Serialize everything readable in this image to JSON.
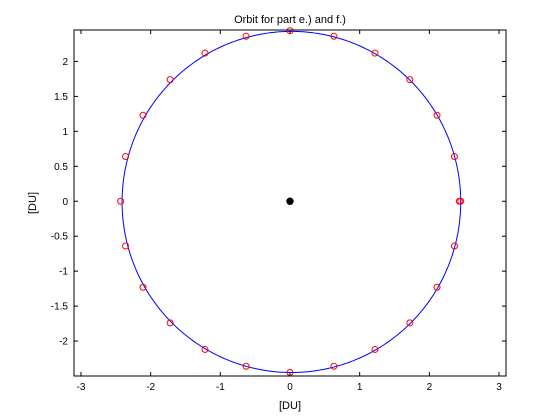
{
  "chart_data": {
    "type": "scatter",
    "title": "Orbit for part e.) and f.)",
    "xlabel": "[DU]",
    "ylabel": "[DU]",
    "xlim": [
      -3.1,
      3.1
    ],
    "ylim": [
      -2.5,
      2.45
    ],
    "x_ticks": [
      -3,
      -2,
      -1,
      0,
      1,
      2,
      3
    ],
    "y_ticks": [
      -2,
      -1.5,
      -1,
      -0.5,
      0,
      0.5,
      1,
      1.5,
      2
    ],
    "grid": false,
    "legend": "none",
    "series": [
      {
        "kind": "line",
        "style": "orbit",
        "center": [
          0.02,
          -0.01
        ],
        "radius_x": 2.43,
        "radius_y": 2.44,
        "color": "#0000ff"
      },
      {
        "kind": "markers",
        "marker": "circle",
        "color": "#ff0000",
        "points": [
          [
            2.45,
            0.0
          ],
          [
            2.36,
            0.64
          ],
          [
            2.11,
            1.23
          ],
          [
            1.72,
            1.74
          ],
          [
            1.22,
            2.12
          ],
          [
            0.63,
            2.36
          ],
          [
            0.0,
            2.44
          ],
          [
            -0.63,
            2.36
          ],
          [
            -1.22,
            2.12
          ],
          [
            -1.72,
            1.74
          ],
          [
            -2.11,
            1.23
          ],
          [
            -2.36,
            0.64
          ],
          [
            -2.43,
            0.0
          ],
          [
            -2.36,
            -0.64
          ],
          [
            -2.11,
            -1.23
          ],
          [
            -1.72,
            -1.74
          ],
          [
            -1.22,
            -2.12
          ],
          [
            -0.63,
            -2.36
          ],
          [
            0.0,
            -2.45
          ],
          [
            0.63,
            -2.36
          ],
          [
            1.22,
            -2.12
          ],
          [
            1.72,
            -1.74
          ],
          [
            2.11,
            -1.23
          ],
          [
            2.36,
            -0.64
          ],
          [
            2.43,
            0.0
          ]
        ]
      },
      {
        "kind": "point",
        "marker": "filled-circle",
        "color": "#000000",
        "points": [
          [
            0,
            0
          ]
        ]
      }
    ]
  }
}
